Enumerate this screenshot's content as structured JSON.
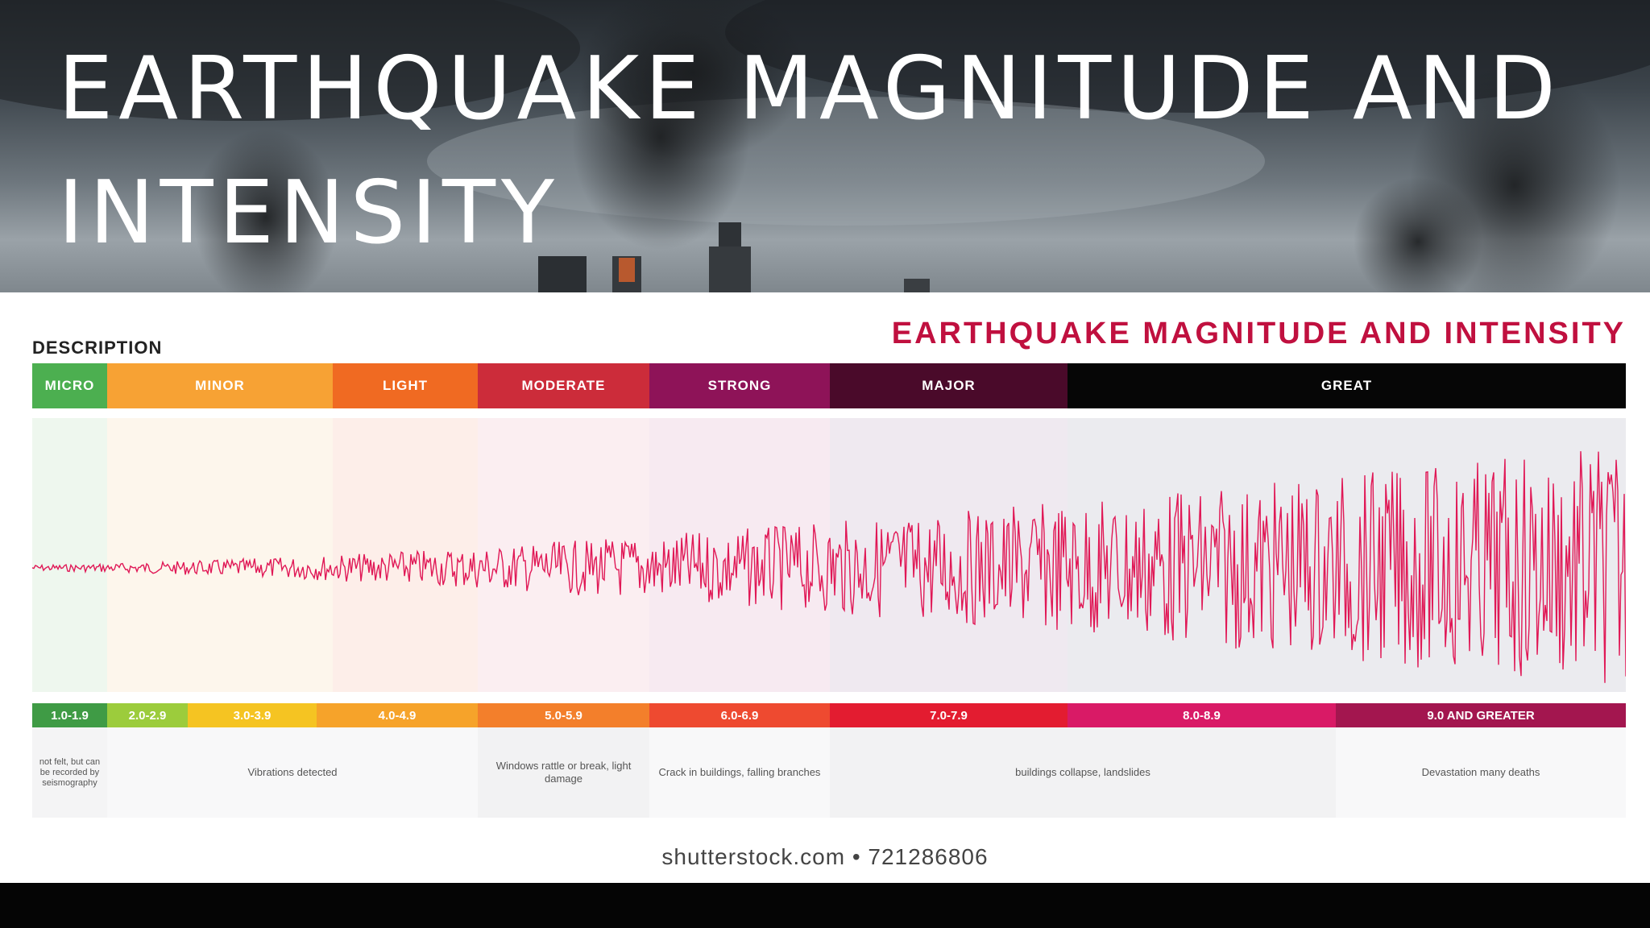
{
  "slide": {
    "title": "EARTHQUAKE MAGNITUDE AND INTENSITY"
  },
  "chart": {
    "title": "EARTHQUAKE MAGNITUDE AND INTENSITY",
    "description_label": "DESCRIPTION",
    "categories": [
      {
        "label": "MICRO",
        "color": "#4caf50",
        "tint": "#eef7ee"
      },
      {
        "label": "MINOR",
        "color": "#f7a234",
        "tint": "#fdf6ec"
      },
      {
        "label": "LIGHT",
        "color": "#f06a22",
        "tint": "#fdeee9"
      },
      {
        "label": "MODERATE",
        "color": "#cc2c3a",
        "tint": "#fbeef1"
      },
      {
        "label": "STRONG",
        "color": "#8e1358",
        "tint": "#f7eaf1"
      },
      {
        "label": "MAJOR",
        "color": "#4a0a2a",
        "tint": "#efe9f0"
      },
      {
        "label": "GREAT",
        "color": "#060606",
        "tint": "#ebebef"
      }
    ],
    "magnitudes": [
      {
        "label": "1.0-1.9",
        "color": "#3f9b45"
      },
      {
        "label": "2.0-2.9",
        "color": "#9ccc3c"
      },
      {
        "label": "3.0-3.9",
        "color": "#f5c422"
      },
      {
        "label": "4.0-4.9",
        "color": "#f6a32a"
      },
      {
        "label": "5.0-5.9",
        "color": "#f37f2b"
      },
      {
        "label": "6.0-6.9",
        "color": "#ee4a30"
      },
      {
        "label": "7.0-7.9",
        "color": "#e31c30"
      },
      {
        "label": "8.0-8.9",
        "color": "#d91a66"
      },
      {
        "label": "9.0 AND GREATER",
        "color": "#a3164f"
      }
    ],
    "effects": [
      {
        "text": "not felt, but can be recorded by seismography"
      },
      {
        "text": "Vibrations detected"
      },
      {
        "text": "Windows rattle or break, light damage"
      },
      {
        "text": "Crack in buildings, falling branches"
      },
      {
        "text": "buildings collapse, landslides"
      },
      {
        "text": "Devastation many deaths"
      }
    ],
    "wave_color": "#e01856"
  },
  "watermark": "shutterstock.com • 721286806"
}
